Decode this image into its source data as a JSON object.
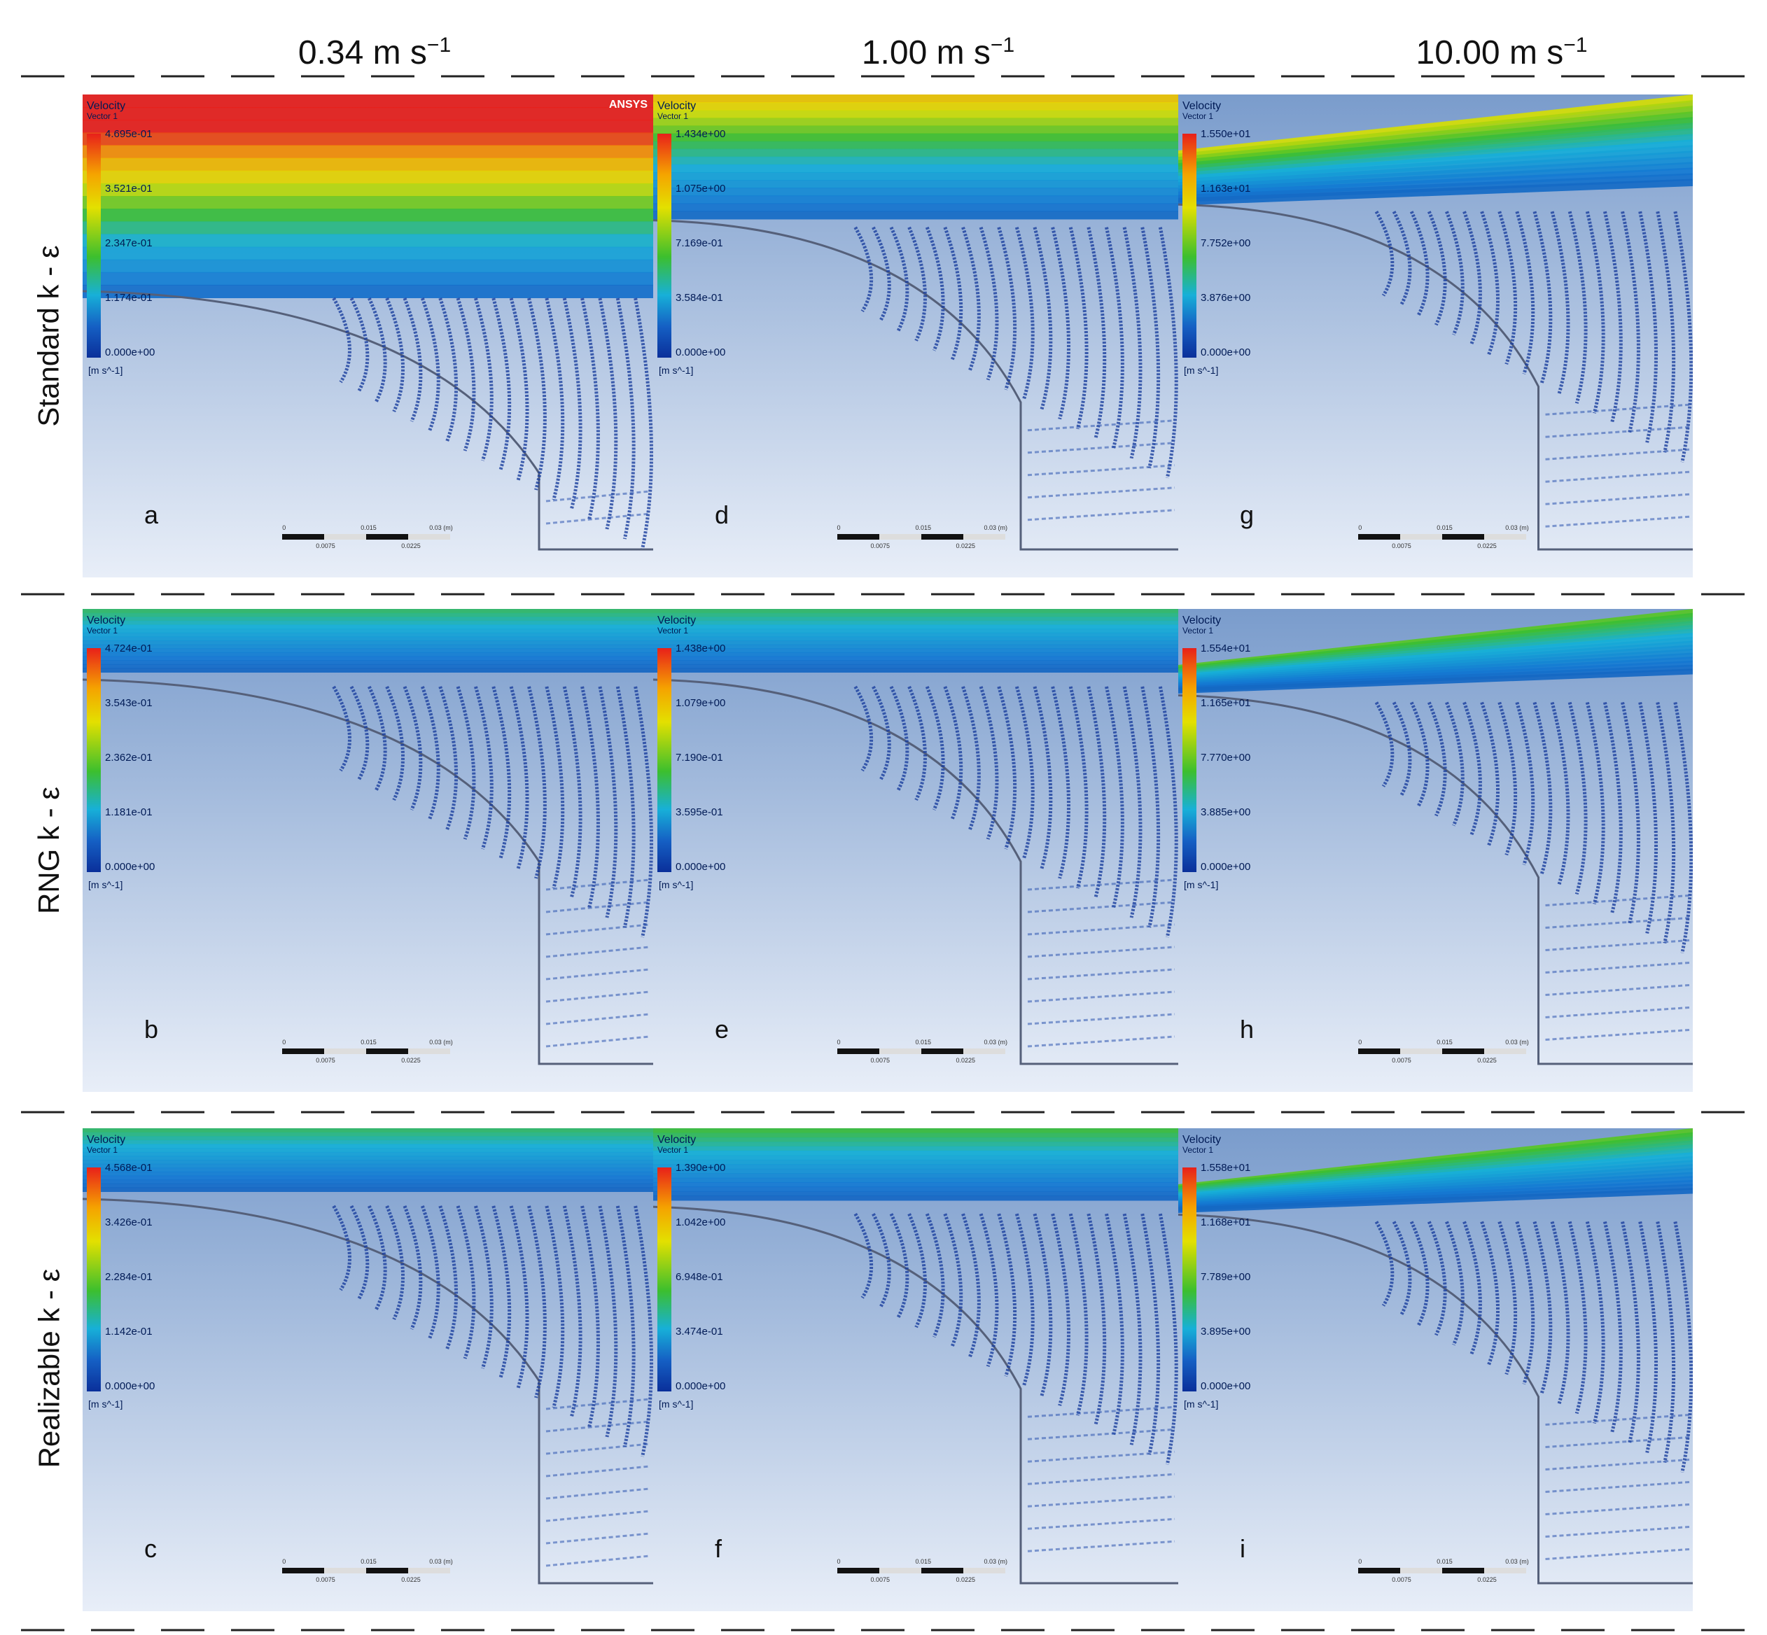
{
  "columns": [
    {
      "id": "v034",
      "value": "0.34 m s",
      "exp": "−1"
    },
    {
      "id": "v100",
      "value": "1.00 m s",
      "exp": "−1"
    },
    {
      "id": "v1000",
      "value": "10.00 m s",
      "exp": "−1"
    }
  ],
  "rows": [
    {
      "id": "standard",
      "label": "Standard k - ε"
    },
    {
      "id": "rng",
      "label": "RNG k - ε"
    },
    {
      "id": "realizable",
      "label": "Realizable k - ε"
    }
  ],
  "legend_common": {
    "title": "Velocity",
    "subtitle": "Vector 1",
    "unit": "[m s^-1]"
  },
  "panels": [
    {
      "letter": "a",
      "row": 0,
      "col": 0,
      "ticks": [
        "4.695e-01",
        "3.521e-01",
        "2.347e-01",
        "1.174e-01",
        "0.000e+00"
      ],
      "flow": 1.0
    },
    {
      "letter": "d",
      "row": 0,
      "col": 1,
      "ticks": [
        "1.434e+00",
        "1.075e+00",
        "7.169e-01",
        "3.584e-01",
        "0.000e+00"
      ],
      "flow": 0.55
    },
    {
      "letter": "g",
      "row": 0,
      "col": 2,
      "ticks": [
        "1.550e+01",
        "1.163e+01",
        "7.752e+00",
        "3.876e+00",
        "0.000e+00"
      ],
      "flow": 0.45
    },
    {
      "letter": "b",
      "row": 1,
      "col": 0,
      "ticks": [
        "4.724e-01",
        "3.543e-01",
        "2.362e-01",
        "1.181e-01",
        "0.000e+00"
      ],
      "flow": 0.2
    },
    {
      "letter": "e",
      "row": 1,
      "col": 1,
      "ticks": [
        "1.438e+00",
        "1.079e+00",
        "7.190e-01",
        "3.595e-01",
        "0.000e+00"
      ],
      "flow": 0.2
    },
    {
      "letter": "h",
      "row": 1,
      "col": 2,
      "ticks": [
        "1.554e+01",
        "1.165e+01",
        "7.770e+00",
        "3.885e+00",
        "0.000e+00"
      ],
      "flow": 0.3
    },
    {
      "letter": "c",
      "row": 2,
      "col": 0,
      "ticks": [
        "4.568e-01",
        "3.426e-01",
        "2.284e-01",
        "1.142e-01",
        "0.000e+00"
      ],
      "flow": 0.2
    },
    {
      "letter": "f",
      "row": 2,
      "col": 1,
      "ticks": [
        "1.390e+00",
        "1.042e+00",
        "6.948e-01",
        "3.474e-01",
        "0.000e+00"
      ],
      "flow": 0.25
    },
    {
      "letter": "i",
      "row": 2,
      "col": 2,
      "ticks": [
        "1.558e+01",
        "1.168e+01",
        "7.789e+00",
        "3.895e+00",
        "0.000e+00"
      ],
      "flow": 0.3
    }
  ],
  "watermark": "ANSYS",
  "scale_text": {
    "left": "0",
    "mid": "0.015",
    "right": "0.03 (m)",
    "q1": "0.0075",
    "q3": "0.0225"
  },
  "colors": {
    "background_top": "#7a9ccc",
    "background_bottom": "#e8eef8",
    "vector_dark": "#1a3f9e",
    "dash": "#222222"
  }
}
